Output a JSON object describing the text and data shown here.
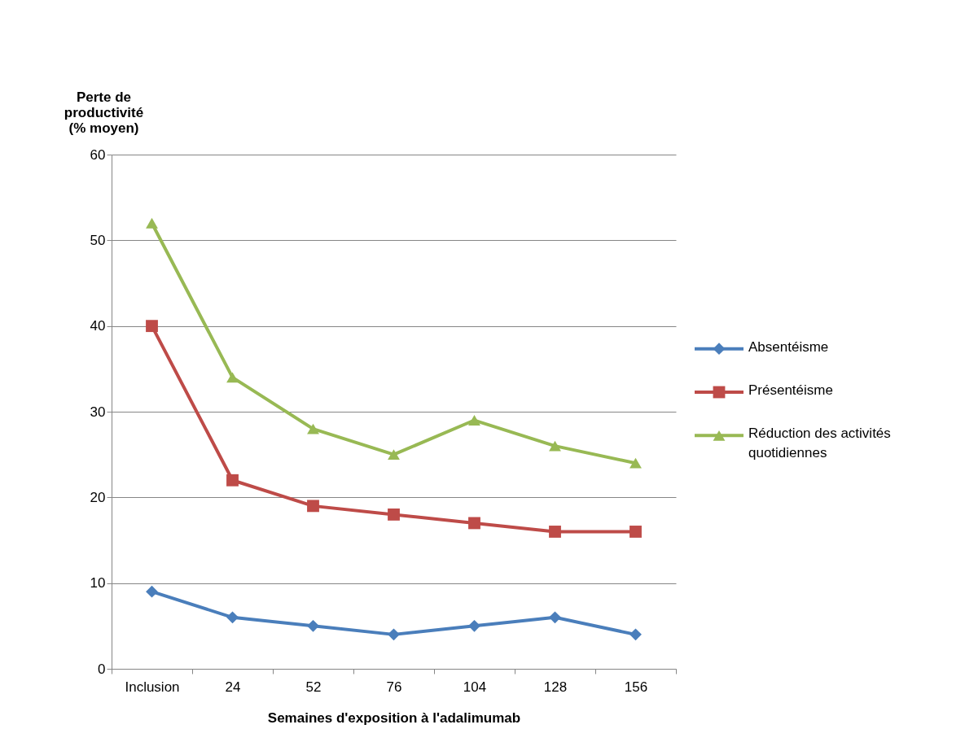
{
  "chart_data": {
    "type": "line",
    "categories": [
      "Inclusion",
      "24",
      "52",
      "76",
      "104",
      "128",
      "156"
    ],
    "xlabel": "Semaines d'exposition à l'adalimumab",
    "ylabel": "Perte de productivité (% moyen)",
    "series": [
      {
        "name": "Absentéisme",
        "color": "#4a7ebb",
        "marker": "diamond",
        "values": [
          9,
          6,
          5,
          4,
          5,
          6,
          4
        ]
      },
      {
        "name": "Présentéisme",
        "color": "#be4b48",
        "marker": "square",
        "values": [
          40,
          22,
          19,
          18,
          17,
          16,
          16
        ]
      },
      {
        "name": "Réduction des activités quotidiennes",
        "color": "#98b954",
        "marker": "triangle",
        "values": [
          52,
          34,
          28,
          25,
          29,
          26,
          24
        ]
      }
    ],
    "ylim": [
      0,
      60
    ],
    "yticks": [
      0,
      10,
      20,
      30,
      40,
      50,
      60
    ],
    "grid": "y",
    "legend": "right",
    "line_style": "solid"
  }
}
